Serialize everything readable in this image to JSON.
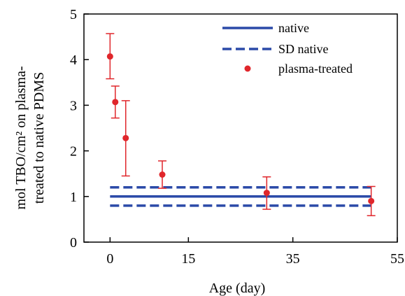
{
  "chart_data": {
    "type": "scatter",
    "xlabel": "Age (day)",
    "ylabel_line1": "mol TBO/cm² on plasma-",
    "ylabel_line2": "treated to native PDMS",
    "xlim": [
      -5,
      55
    ],
    "ylim": [
      0,
      5
    ],
    "xticks": [
      0,
      15,
      35,
      55
    ],
    "yticks": [
      0,
      1,
      2,
      3,
      4,
      5
    ],
    "grid": false,
    "legend_position": "top-right",
    "series": [
      {
        "name": "native",
        "kind": "line",
        "style": "solid",
        "color": "#2b4aa8",
        "x": [
          0,
          50
        ],
        "y": [
          1.0,
          1.0
        ]
      },
      {
        "name": "SD native",
        "kind": "line",
        "style": "dashed",
        "color": "#2b4aa8",
        "x": [
          0,
          50
        ],
        "y_upper": [
          1.2,
          1.2
        ],
        "y_lower": [
          0.8,
          0.8
        ]
      },
      {
        "name": "plasma-treated",
        "kind": "points",
        "color": "#e0262b",
        "x": [
          0,
          1,
          3,
          10,
          30,
          50
        ],
        "y": [
          4.07,
          3.07,
          2.28,
          1.48,
          1.08,
          0.9
        ],
        "err_low": [
          3.58,
          2.72,
          1.45,
          1.18,
          0.72,
          0.58
        ],
        "err_high": [
          4.57,
          3.42,
          3.1,
          1.78,
          1.43,
          1.22
        ]
      }
    ]
  }
}
